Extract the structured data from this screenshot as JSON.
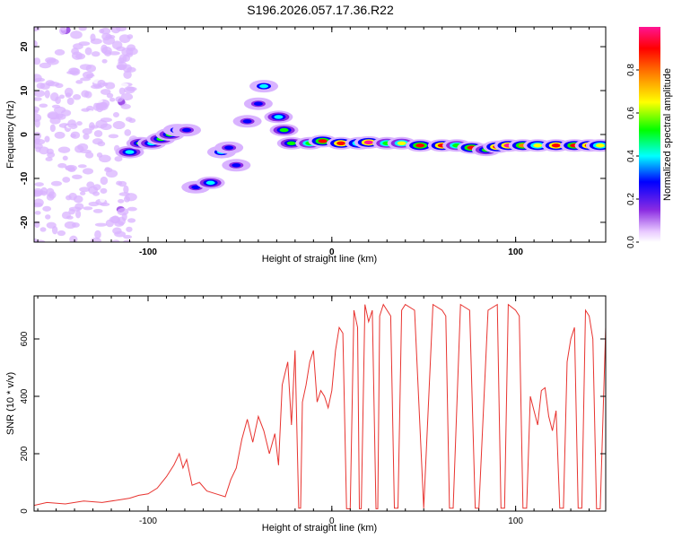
{
  "title": "S196.2026.057.17.36.R22",
  "colors": {
    "snr_line": "#e8332f",
    "axis": "#000000",
    "colormap": [
      "#ffffff",
      "#d9b3ff",
      "#8a2be2",
      "#0000ff",
      "#00ffff",
      "#00ff00",
      "#ffff00",
      "#ff8000",
      "#ff0000",
      "#ff1493"
    ]
  },
  "chart_data": [
    {
      "type": "heatmap",
      "title": "S196.2026.057.17.36.R22",
      "xlabel": "Height of straight line (km)",
      "ylabel": "Frequency (Hz)",
      "xlim": [
        -162,
        149
      ],
      "ylim": [
        -24.5,
        24.5
      ],
      "xticks": [
        -100,
        0,
        100
      ],
      "yticks": [
        -20,
        -10,
        0,
        10,
        20
      ],
      "colorbar": {
        "label": "Normalized spectral amplitude",
        "range": [
          0,
          1
        ],
        "ticks": [
          "0.0",
          "0.2",
          "0.4",
          "0.6",
          "0.8"
        ],
        "tick_values": [
          0.0,
          0.2,
          0.4,
          0.6,
          0.8
        ]
      },
      "ridge": [
        {
          "x": -110,
          "y": -4,
          "v": 0.45
        },
        {
          "x": -104,
          "y": -2,
          "v": 0.5
        },
        {
          "x": -98,
          "y": -2,
          "v": 0.45
        },
        {
          "x": -93,
          "y": -1,
          "v": 0.5
        },
        {
          "x": -88,
          "y": 0,
          "v": 0.5
        },
        {
          "x": -84,
          "y": 1,
          "v": 0.4
        },
        {
          "x": -79,
          "y": 1,
          "v": 0.35
        },
        {
          "x": -74,
          "y": -12,
          "v": 0.35
        },
        {
          "x": -66,
          "y": -11,
          "v": 0.45
        },
        {
          "x": -60,
          "y": -4,
          "v": 0.4
        },
        {
          "x": -56,
          "y": -3,
          "v": 0.35
        },
        {
          "x": -52,
          "y": -7,
          "v": 0.35
        },
        {
          "x": -46,
          "y": 3,
          "v": 0.3
        },
        {
          "x": -40,
          "y": 7,
          "v": 0.35
        },
        {
          "x": -37,
          "y": 11,
          "v": 0.4
        },
        {
          "x": -29,
          "y": 4,
          "v": 0.45
        },
        {
          "x": -26,
          "y": 1,
          "v": 0.5
        },
        {
          "x": -22,
          "y": -2,
          "v": 0.55
        },
        {
          "x": -12,
          "y": -2,
          "v": 0.6
        },
        {
          "x": -5,
          "y": -1.5,
          "v": 0.85
        },
        {
          "x": 5,
          "y": -2,
          "v": 0.9
        },
        {
          "x": 15,
          "y": -2,
          "v": 0.7
        },
        {
          "x": 20,
          "y": -1.8,
          "v": 0.95
        },
        {
          "x": 30,
          "y": -2,
          "v": 0.6
        },
        {
          "x": 38,
          "y": -2,
          "v": 0.65
        },
        {
          "x": 48,
          "y": -2.5,
          "v": 0.85
        },
        {
          "x": 60,
          "y": -2.5,
          "v": 0.9
        },
        {
          "x": 68,
          "y": -2.5,
          "v": 0.6
        },
        {
          "x": 76,
          "y": -3,
          "v": 0.85
        },
        {
          "x": 84,
          "y": -3.5,
          "v": 0.55
        },
        {
          "x": 90,
          "y": -2.8,
          "v": 0.9
        },
        {
          "x": 96,
          "y": -2.5,
          "v": 0.95
        },
        {
          "x": 104,
          "y": -2.5,
          "v": 0.8
        },
        {
          "x": 112,
          "y": -2.5,
          "v": 0.7
        },
        {
          "x": 122,
          "y": -2.5,
          "v": 0.9
        },
        {
          "x": 132,
          "y": -2.5,
          "v": 0.85
        },
        {
          "x": 140,
          "y": -2.5,
          "v": 0.9
        },
        {
          "x": 146,
          "y": -2.5,
          "v": 0.7
        }
      ]
    },
    {
      "type": "line",
      "xlabel": "Height of straight line (km)",
      "ylabel": "SNR (10 * v/v)",
      "xlim": [
        -162,
        149
      ],
      "ylim": [
        0,
        750
      ],
      "xticks": [
        -100,
        0,
        100
      ],
      "yticks": [
        0,
        200,
        400,
        600
      ],
      "series": [
        {
          "name": "SNR",
          "x": [
            -162,
            -155,
            -145,
            -135,
            -125,
            -115,
            -110,
            -105,
            -100,
            -95,
            -90,
            -86,
            -83,
            -81,
            -79,
            -76,
            -72,
            -68,
            -63,
            -58,
            -55,
            -52,
            -49,
            -46,
            -43,
            -40,
            -37,
            -34,
            -31,
            -29,
            -27,
            -24,
            -22,
            -20,
            -18,
            -17,
            -16,
            -14,
            -12,
            -10,
            -8,
            -6,
            -4,
            -2,
            0,
            2,
            4,
            6,
            8,
            10,
            12,
            14,
            15,
            16,
            18,
            20,
            22,
            24,
            25,
            26,
            28,
            30,
            32,
            34,
            36,
            38,
            40,
            45,
            50,
            55,
            60,
            62,
            64,
            66,
            70,
            75,
            78,
            80,
            85,
            90,
            92,
            94,
            96,
            100,
            102,
            104,
            106,
            108,
            110,
            112,
            114,
            116,
            118,
            120,
            122,
            124,
            126,
            128,
            130,
            132,
            134,
            136,
            138,
            140,
            142,
            144,
            146,
            149
          ],
          "y": [
            20,
            30,
            25,
            35,
            30,
            40,
            45,
            55,
            60,
            80,
            120,
            160,
            200,
            150,
            180,
            90,
            100,
            70,
            60,
            50,
            110,
            150,
            250,
            320,
            240,
            330,
            280,
            200,
            270,
            160,
            440,
            520,
            300,
            560,
            10,
            10,
            380,
            440,
            520,
            560,
            380,
            420,
            400,
            360,
            420,
            560,
            640,
            620,
            8,
            8,
            700,
            640,
            8,
            8,
            720,
            660,
            700,
            8,
            8,
            680,
            720,
            700,
            680,
            10,
            10,
            700,
            720,
            700,
            10,
            720,
            700,
            680,
            10,
            10,
            720,
            700,
            10,
            10,
            700,
            720,
            10,
            10,
            720,
            700,
            680,
            10,
            10,
            400,
            350,
            300,
            420,
            430,
            330,
            280,
            350,
            10,
            10,
            520,
            600,
            640,
            10,
            10,
            700,
            680,
            600,
            8,
            8,
            640
          ]
        }
      ]
    }
  ]
}
